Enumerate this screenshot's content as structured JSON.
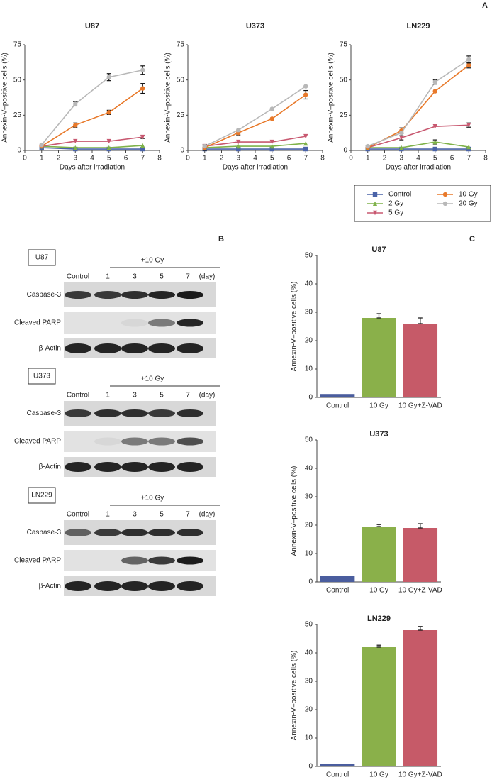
{
  "panel_labels": {
    "a": "A",
    "b": "B",
    "c": "C"
  },
  "legend": {
    "entries": [
      {
        "name": "Control",
        "color": "#4a63a8",
        "marker": "square"
      },
      {
        "name": "2 Gy",
        "color": "#7fb24a",
        "marker": "triangle"
      },
      {
        "name": "5 Gy",
        "color": "#c85870",
        "marker": "triangle-down"
      },
      {
        "name": "10 Gy",
        "color": "#e8792a",
        "marker": "circle"
      },
      {
        "name": "20 Gy",
        "color": "#b8b8b8",
        "marker": "circle"
      }
    ]
  },
  "chart_data": [
    {
      "type": "line",
      "title": "U87",
      "x_label": "Days after irradiation",
      "y_label": "Annexin-V–positive cells (%)",
      "x": [
        1,
        3,
        5,
        7
      ],
      "xlim": [
        0,
        8
      ],
      "xticks": [
        0,
        1,
        2,
        3,
        4,
        5,
        6,
        7,
        8
      ],
      "ylim": [
        0,
        75
      ],
      "yticks": [
        0,
        25,
        50,
        75
      ],
      "series": [
        {
          "values": [
            2,
            1,
            1,
            1
          ]
        },
        {
          "values": [
            3,
            2,
            2,
            3.5
          ]
        },
        {
          "values": [
            3,
            6.5,
            6.5,
            9.5
          ],
          "errors": [
            null,
            null,
            null,
            1
          ]
        },
        {
          "values": [
            3,
            18,
            27,
            44
          ],
          "errors": [
            null,
            1.5,
            1.5,
            3.5
          ]
        },
        {
          "values": [
            4,
            33,
            52,
            57
          ],
          "errors": [
            null,
            1.5,
            2.5,
            3
          ]
        }
      ]
    },
    {
      "type": "line",
      "title": "U373",
      "x_label": "Days after irradiation",
      "y_label": "Annexin-V–positive cells (%)",
      "x": [
        1,
        3,
        5,
        7
      ],
      "xlim": [
        0,
        8
      ],
      "xticks": [
        0,
        1,
        2,
        3,
        4,
        5,
        6,
        7,
        8
      ],
      "ylim": [
        0,
        75
      ],
      "yticks": [
        0,
        25,
        50,
        75
      ],
      "series": [
        {
          "values": [
            1,
            1,
            1,
            1
          ]
        },
        {
          "values": [
            2,
            3,
            3,
            5
          ]
        },
        {
          "values": [
            3,
            6,
            6,
            10
          ]
        },
        {
          "values": [
            2,
            12.5,
            22.5,
            39.5
          ],
          "errors": [
            2,
            1.5,
            null,
            3
          ]
        },
        {
          "values": [
            3,
            14.5,
            29.5,
            45.5
          ]
        }
      ]
    },
    {
      "type": "line",
      "title": "LN229",
      "x_label": "Days after irradiation",
      "y_label": "Annexin-V–positive cells (%)",
      "x": [
        1,
        3,
        5,
        7
      ],
      "xlim": [
        0,
        8
      ],
      "xticks": [
        0,
        1,
        2,
        3,
        4,
        5,
        6,
        7,
        8
      ],
      "ylim": [
        0,
        75
      ],
      "yticks": [
        0,
        25,
        50,
        75
      ],
      "series": [
        {
          "values": [
            1,
            1,
            1,
            1
          ]
        },
        {
          "values": [
            2,
            2,
            6,
            2.5
          ],
          "errors": [
            null,
            null,
            1.5,
            null
          ]
        },
        {
          "values": [
            2,
            9,
            17,
            18
          ],
          "errors": [
            null,
            1.5,
            null,
            1.5
          ]
        },
        {
          "values": [
            2,
            14,
            42,
            60.5
          ],
          "errors": [
            null,
            2,
            null,
            2
          ]
        },
        {
          "values": [
            3,
            12.5,
            48.5,
            64.5
          ],
          "errors": [
            null,
            null,
            1.5,
            2.5
          ]
        }
      ]
    },
    {
      "type": "bar",
      "title": "U87",
      "y_label": "Annexin-V–positive cells (%)",
      "categories": [
        "Control",
        "10 Gy",
        "10 Gy+Z-VAD"
      ],
      "colors": [
        "#4a5d9e",
        "#8ab04a",
        "#c65a68"
      ],
      "values": [
        1.2,
        28,
        26
      ],
      "errors": [
        null,
        1.5,
        2
      ],
      "ylim": [
        0,
        50
      ],
      "yticks": [
        0,
        10,
        20,
        30,
        40,
        50
      ]
    },
    {
      "type": "bar",
      "title": "U373",
      "y_label": "Annexin-V–positive cells (%)",
      "categories": [
        "Control",
        "10 Gy",
        "10 Gy+Z-VAD"
      ],
      "colors": [
        "#4a5d9e",
        "#8ab04a",
        "#c65a68"
      ],
      "values": [
        2,
        19.5,
        19
      ],
      "errors": [
        null,
        0.7,
        1.5
      ],
      "ylim": [
        0,
        50
      ],
      "yticks": [
        0,
        10,
        20,
        30,
        40,
        50
      ]
    },
    {
      "type": "bar",
      "title": "LN229",
      "y_label": "Annexin-V–positive cells (%)",
      "categories": [
        "Control",
        "10 Gy",
        "10 Gy+Z-VAD"
      ],
      "colors": [
        "#4a5d9e",
        "#8ab04a",
        "#c65a68"
      ],
      "values": [
        1,
        42,
        48
      ],
      "errors": [
        null,
        0.7,
        1.3
      ],
      "ylim": [
        0,
        50
      ],
      "yticks": [
        0,
        10,
        20,
        30,
        40,
        50
      ]
    }
  ],
  "blots": [
    {
      "cell_line": "U87",
      "treatment": "+10 Gy",
      "lanes": [
        "Control",
        "1",
        "3",
        "5",
        "7",
        "(day)"
      ],
      "rows": [
        "Caspase-3",
        "Cleaved PARP",
        "β-Actin"
      ]
    },
    {
      "cell_line": "U373",
      "treatment": "+10 Gy",
      "lanes": [
        "Control",
        "1",
        "3",
        "5",
        "7",
        "(day)"
      ],
      "rows": [
        "Caspase-3",
        "Cleaved PARP",
        "β-Actin"
      ]
    },
    {
      "cell_line": "LN229",
      "treatment": "+10 Gy",
      "lanes": [
        "Control",
        "1",
        "3",
        "5",
        "7",
        "(day)"
      ],
      "rows": [
        "Caspase-3",
        "Cleaved PARP",
        "β-Actin"
      ]
    }
  ]
}
